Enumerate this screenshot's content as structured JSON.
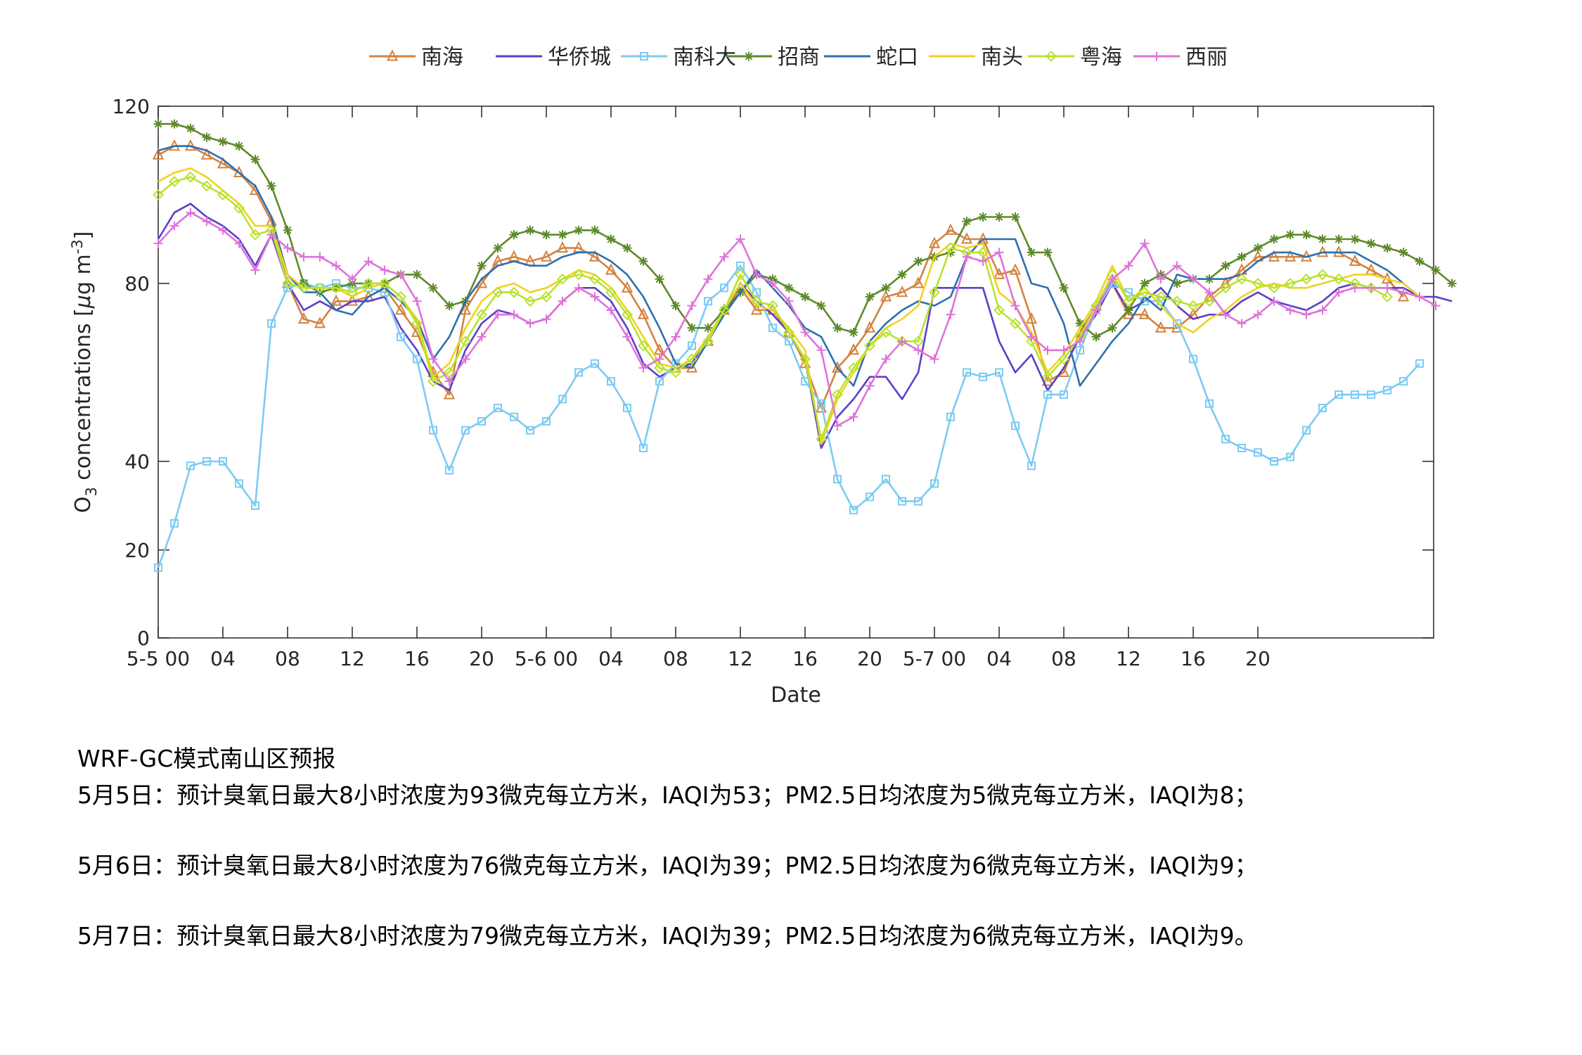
{
  "chart_data": {
    "type": "line",
    "xlabel": "Date",
    "ylabel": "O3 concentrations [μg m-3]",
    "ylabel_parts": {
      "o": "O",
      "sub": "3",
      "mid": " concentrations [",
      "mu": "μ",
      "g": "g m",
      "sup": "-3",
      "end": "]"
    },
    "ylim": [
      0,
      120
    ],
    "yticks": [
      0,
      20,
      40,
      80,
      120
    ],
    "n_hours": 72,
    "xticks": [
      {
        "hour": 0,
        "label": "5-5 00"
      },
      {
        "hour": 4,
        "label": "04"
      },
      {
        "hour": 8,
        "label": "08"
      },
      {
        "hour": 12,
        "label": "12"
      },
      {
        "hour": 16,
        "label": "16"
      },
      {
        "hour": 20,
        "label": "20"
      },
      {
        "hour": 24,
        "label": "5-6 00"
      },
      {
        "hour": 28,
        "label": "04"
      },
      {
        "hour": 32,
        "label": "08"
      },
      {
        "hour": 36,
        "label": "12"
      },
      {
        "hour": 40,
        "label": "16"
      },
      {
        "hour": 44,
        "label": "20"
      },
      {
        "hour": 48,
        "label": "5-7 00"
      },
      {
        "hour": 52,
        "label": "04"
      },
      {
        "hour": 56,
        "label": "08"
      },
      {
        "hour": 60,
        "label": "12"
      },
      {
        "hour": 64,
        "label": "16"
      },
      {
        "hour": 68,
        "label": "20"
      }
    ],
    "legend_position": "top",
    "series": [
      {
        "name": "南海",
        "color": "#D4823F",
        "marker": "triangle",
        "values": [
          109,
          111,
          111,
          109,
          107,
          105,
          101,
          94,
          80,
          72,
          71,
          76,
          76,
          77,
          79,
          74,
          69,
          60,
          55,
          74,
          80,
          85,
          86,
          85,
          86,
          88,
          88,
          86,
          83,
          79,
          73,
          65,
          61,
          61,
          67,
          74,
          79,
          74,
          74,
          69,
          62,
          52,
          61,
          65,
          70,
          77,
          78,
          80,
          89,
          92,
          90,
          90,
          82,
          83,
          72,
          58,
          60,
          69,
          75,
          80,
          73,
          73,
          70,
          70,
          73,
          77,
          80,
          83,
          86,
          86,
          86,
          86,
          87,
          87,
          85,
          83,
          81,
          77
        ]
      },
      {
        "name": "华侨城",
        "color": "#5B3FC8",
        "marker": "none",
        "values": [
          90,
          96,
          98,
          95,
          93,
          90,
          84,
          91,
          80,
          74,
          76,
          74,
          76,
          76,
          77,
          70,
          65,
          58,
          56,
          65,
          71,
          74,
          73,
          71,
          72,
          76,
          79,
          79,
          76,
          70,
          62,
          59,
          61,
          62,
          68,
          74,
          80,
          76,
          73,
          69,
          63,
          43,
          50,
          54,
          59,
          59,
          54,
          60,
          79,
          79,
          79,
          79,
          67,
          60,
          64,
          56,
          61,
          68,
          73,
          80,
          74,
          76,
          79,
          75,
          72,
          73,
          73,
          76,
          78,
          76,
          75,
          74,
          76,
          79,
          80,
          79,
          79,
          79,
          77,
          77,
          76
        ]
      },
      {
        "name": "南科大",
        "color": "#7CCBF2",
        "marker": "square",
        "values": [
          16,
          26,
          39,
          40,
          40,
          35,
          30,
          71,
          79,
          80,
          79,
          80,
          79,
          79,
          78,
          68,
          63,
          47,
          38,
          47,
          49,
          52,
          50,
          47,
          49,
          54,
          60,
          62,
          58,
          52,
          43,
          58,
          62,
          66,
          76,
          79,
          84,
          78,
          70,
          67,
          58,
          53,
          36,
          29,
          32,
          36,
          31,
          31,
          35,
          50,
          60,
          59,
          60,
          48,
          39,
          55,
          55,
          65,
          74,
          80,
          78,
          76,
          76,
          71,
          63,
          53,
          45,
          43,
          42,
          40,
          41,
          47,
          52,
          55,
          55,
          55,
          56,
          58,
          62
        ]
      },
      {
        "name": "招商",
        "color": "#5E8A2A",
        "marker": "star",
        "values": [
          116,
          116,
          115,
          113,
          112,
          111,
          108,
          102,
          92,
          80,
          78,
          79,
          80,
          80,
          80,
          82,
          82,
          79,
          75,
          76,
          84,
          88,
          91,
          92,
          91,
          91,
          92,
          92,
          90,
          88,
          85,
          81,
          75,
          70,
          70,
          74,
          78,
          82,
          81,
          79,
          77,
          75,
          70,
          69,
          77,
          79,
          82,
          85,
          86,
          87,
          94,
          95,
          95,
          95,
          87,
          87,
          79,
          71,
          68,
          70,
          74,
          80,
          82,
          80,
          81,
          81,
          84,
          86,
          88,
          90,
          91,
          91,
          90,
          90,
          90,
          89,
          88,
          87,
          85,
          83,
          80
        ]
      },
      {
        "name": "蛇口",
        "color": "#2E6FB0",
        "marker": "none",
        "values": [
          110,
          111,
          111,
          110,
          108,
          105,
          102,
          95,
          82,
          78,
          78,
          74,
          73,
          77,
          79,
          76,
          72,
          63,
          68,
          76,
          81,
          84,
          85,
          84,
          84,
          86,
          87,
          87,
          85,
          82,
          77,
          70,
          62,
          61,
          67,
          73,
          78,
          83,
          79,
          75,
          70,
          68,
          61,
          57,
          67,
          71,
          74,
          76,
          75,
          77,
          86,
          90,
          90,
          90,
          80,
          79,
          71,
          57,
          62,
          67,
          71,
          77,
          74,
          82,
          81,
          81,
          81,
          82,
          85,
          87,
          87,
          86,
          87,
          87,
          87,
          85,
          83,
          80,
          77
        ]
      },
      {
        "name": "南头",
        "color": "#F2D21E",
        "marker": "none",
        "values": [
          103,
          105,
          106,
          104,
          101,
          98,
          93,
          93,
          82,
          79,
          79,
          79,
          77,
          79,
          80,
          77,
          72,
          59,
          62,
          70,
          76,
          79,
          80,
          78,
          79,
          81,
          83,
          82,
          79,
          74,
          68,
          62,
          61,
          63,
          68,
          74,
          80,
          75,
          74,
          70,
          65,
          44,
          54,
          60,
          66,
          70,
          72,
          75,
          86,
          89,
          88,
          89,
          78,
          75,
          69,
          60,
          64,
          70,
          76,
          84,
          76,
          79,
          75,
          71,
          69,
          72,
          74,
          77,
          79,
          80,
          79,
          79,
          80,
          81,
          82,
          82,
          81,
          80,
          77
        ]
      },
      {
        "name": "粤海",
        "color": "#B9E22F",
        "marker": "diamond",
        "values": [
          100,
          103,
          104,
          102,
          100,
          97,
          91,
          92,
          80,
          79,
          79,
          79,
          78,
          80,
          80,
          77,
          71,
          58,
          60,
          67,
          73,
          78,
          78,
          76,
          77,
          81,
          82,
          81,
          78,
          73,
          66,
          61,
          60,
          63,
          67,
          74,
          82,
          76,
          75,
          69,
          63,
          45,
          55,
          61,
          66,
          69,
          67,
          67,
          78,
          88,
          87,
          87,
          74,
          71,
          67,
          59,
          63,
          68,
          75,
          82,
          76,
          78,
          77,
          76,
          75,
          76,
          79,
          81,
          80,
          79,
          80,
          81,
          82,
          81,
          80,
          79,
          77
        ]
      },
      {
        "name": "西丽",
        "color": "#DE73DB",
        "marker": "plus",
        "values": [
          89,
          93,
          96,
          94,
          92,
          89,
          83,
          91,
          88,
          86,
          86,
          84,
          81,
          85,
          83,
          82,
          76,
          63,
          58,
          63,
          68,
          73,
          73,
          71,
          72,
          76,
          79,
          77,
          74,
          68,
          61,
          63,
          68,
          75,
          81,
          86,
          90,
          82,
          80,
          76,
          69,
          65,
          48,
          50,
          57,
          63,
          67,
          65,
          63,
          73,
          86,
          85,
          87,
          75,
          68,
          65,
          65,
          67,
          74,
          81,
          84,
          89,
          81,
          84,
          81,
          78,
          73,
          71,
          73,
          76,
          74,
          73,
          74,
          78,
          79,
          79,
          79,
          78,
          77,
          75
        ]
      }
    ]
  },
  "text": {
    "title": "WRF-GC模式南山区预报",
    "line1": "5月5日：预计臭氧日最大8小时浓度为93微克每立方米，IAQI为53；PM2.5日均浓度为5微克每立方米，IAQI为8；",
    "line2": "5月6日：预计臭氧日最大8小时浓度为76微克每立方米，IAQI为39；PM2.5日均浓度为6微克每立方米，IAQI为9；",
    "line3": "5月7日：预计臭氧日最大8小时浓度为79微克每立方米，IAQI为39；PM2.5日均浓度为6微克每立方米，IAQI为9。"
  }
}
